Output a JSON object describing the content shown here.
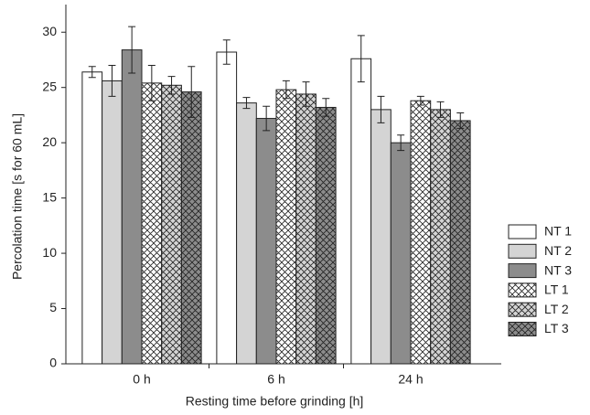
{
  "chart_data": {
    "type": "bar",
    "x_label": "Resting time before grinding [h]",
    "y_label": "Percolation time [s for 60 mL]",
    "categories": [
      "0 h",
      "6 h",
      "24 h"
    ],
    "ylim": [
      0,
      32.5
    ],
    "yticks": [
      0,
      5,
      10,
      15,
      20,
      25,
      30
    ],
    "legend": "right",
    "series": [
      {
        "name": "NT 1",
        "color": "#ffffff",
        "hatch": false,
        "values": [
          26.4,
          28.2,
          27.6
        ],
        "errors": [
          0.5,
          1.1,
          2.1
        ]
      },
      {
        "name": "NT 2",
        "color": "#d4d4d4",
        "hatch": false,
        "values": [
          25.6,
          23.6,
          23.0
        ],
        "errors": [
          1.4,
          0.5,
          1.2
        ]
      },
      {
        "name": "NT 3",
        "color": "#8c8c8c",
        "hatch": false,
        "values": [
          28.4,
          22.2,
          20.0
        ],
        "errors": [
          2.1,
          1.1,
          0.7
        ]
      },
      {
        "name": "LT 1",
        "color": "#ffffff",
        "hatch": true,
        "values": [
          25.4,
          24.8,
          23.8
        ],
        "errors": [
          1.6,
          0.8,
          0.4
        ]
      },
      {
        "name": "LT 2",
        "color": "#d4d4d4",
        "hatch": true,
        "values": [
          25.2,
          24.4,
          23.0
        ],
        "errors": [
          0.8,
          1.1,
          0.7
        ]
      },
      {
        "name": "LT 3",
        "color": "#8c8c8c",
        "hatch": true,
        "values": [
          24.6,
          23.2,
          22.0
        ],
        "errors": [
          2.3,
          0.8,
          0.7
        ]
      }
    ]
  }
}
